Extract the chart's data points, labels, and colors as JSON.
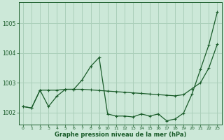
{
  "bg_color": "#cce8d8",
  "grid_color": "#aacfba",
  "line_color": "#1a5c2a",
  "xlabel": "Graphe pression niveau de la mer (hPa)",
  "xlim": [
    -0.5,
    23.5
  ],
  "ylim": [
    1001.6,
    1005.7
  ],
  "yticks": [
    1002,
    1003,
    1004,
    1005
  ],
  "xticks": [
    0,
    1,
    2,
    3,
    4,
    5,
    6,
    7,
    8,
    9,
    10,
    11,
    12,
    13,
    14,
    15,
    16,
    17,
    18,
    19,
    20,
    21,
    22,
    23
  ],
  "s1_x": [
    0,
    1,
    2,
    3,
    4,
    5,
    6,
    7,
    8,
    9,
    10,
    11,
    12,
    13,
    14,
    15,
    16,
    17,
    18,
    19,
    20,
    21,
    22,
    23
  ],
  "s1_y": [
    1002.2,
    1002.15,
    1002.75,
    1002.75,
    1002.75,
    1002.78,
    1002.78,
    1002.78,
    1002.76,
    1002.74,
    1002.72,
    1002.7,
    1002.68,
    1002.66,
    1002.64,
    1002.62,
    1002.6,
    1002.58,
    1002.56,
    1002.6,
    1002.8,
    1003.0,
    1003.5,
    1004.3
  ],
  "s2_x": [
    0,
    1,
    2,
    3,
    4,
    5,
    6,
    7,
    8,
    9,
    10,
    11,
    12,
    13,
    14,
    15,
    16,
    17,
    18,
    19,
    20,
    21,
    22,
    23
  ],
  "s2_y": [
    1002.2,
    1002.15,
    1002.75,
    1002.2,
    1002.55,
    1002.78,
    1002.78,
    1003.1,
    1003.55,
    1003.85,
    1001.95,
    1001.88,
    1001.88,
    1001.85,
    1001.95,
    1001.88,
    1001.95,
    1001.72,
    1001.78,
    1001.98,
    1002.62,
    1003.45,
    1004.28,
    1005.38
  ]
}
